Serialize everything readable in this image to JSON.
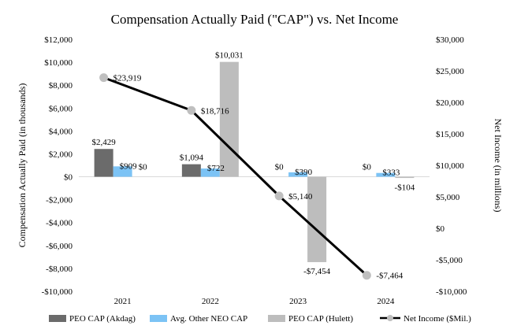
{
  "chart_data": {
    "type": "bar",
    "title": "Compensation Actually Paid (\"CAP\") vs. Net Income",
    "categories": [
      "2021",
      "2022",
      "2023",
      "2024"
    ],
    "ylabel": "Compensation Actually Paid (in thousands)",
    "y2label": "Net Income (in millions)",
    "ylim": [
      -10000,
      12000
    ],
    "y2lim": [
      -10000,
      30000
    ],
    "yticks": [
      -10000,
      -8000,
      -6000,
      -4000,
      -2000,
      0,
      2000,
      4000,
      6000,
      8000,
      10000,
      12000
    ],
    "ytick_labels": [
      "-$10,000",
      "-$8,000",
      "-$6,000",
      "-$4,000",
      "-$2,000",
      "$0",
      "$2,000",
      "$4,000",
      "$6,000",
      "$8,000",
      "$10,000",
      "$12,000"
    ],
    "y2ticks": [
      -10000,
      -5000,
      0,
      5000,
      10000,
      15000,
      20000,
      25000,
      30000
    ],
    "y2tick_labels": [
      "-$10,000",
      "-$5,000",
      "$0",
      "$5,000",
      "$10,000",
      "$15,000",
      "$20,000",
      "$25,000",
      "$30,000"
    ],
    "series": [
      {
        "name": "PEO CAP (Akdag)",
        "kind": "bar",
        "axis": "left",
        "color": "#6b6b6b",
        "values": [
          2429,
          1094,
          null,
          null
        ],
        "labels": [
          "$2,429",
          "$1,094",
          "$0",
          "$0"
        ]
      },
      {
        "name": "Avg. Other NEO CAP",
        "kind": "bar",
        "axis": "left",
        "color": "#7cc3f5",
        "values": [
          909,
          722,
          390,
          333
        ],
        "labels": [
          "$909",
          "$722",
          "$390",
          "$333"
        ]
      },
      {
        "name": "PEO CAP (Hulett)",
        "kind": "bar",
        "axis": "left",
        "color": "#bdbdbd",
        "values": [
          null,
          10031,
          -7454,
          -104
        ],
        "labels": [
          "$0",
          "$10,031",
          "-$7,454",
          "-$104"
        ]
      },
      {
        "name": "Net Income ($Mil.)",
        "kind": "line",
        "axis": "right",
        "color": "#000000",
        "marker_color": "#bfbfbf",
        "values": [
          23919,
          18716,
          5140,
          -7464
        ],
        "labels": [
          "$23,919",
          "$18,716",
          "$5,140",
          "-$7,464"
        ]
      }
    ],
    "legend_position": "bottom",
    "grid": false
  }
}
